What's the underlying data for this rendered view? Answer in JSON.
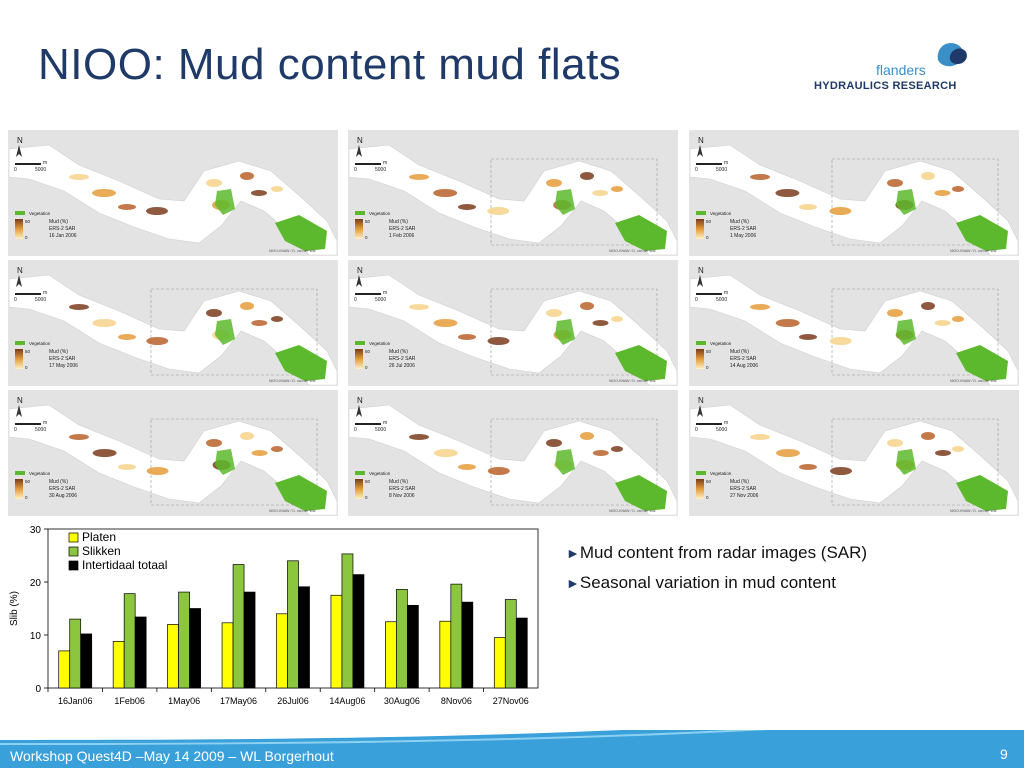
{
  "slide": {
    "title": "NIOO: Mud content mud flats",
    "logo_line1": "flanders",
    "logo_line2": "HYDRAULICS RESEARCH",
    "footer": "Workshop Quest4D –May 14 2009 – WL Borgerhout",
    "page_number": "9",
    "accent_color": "#1f3a68",
    "footer_color": "#3aa0da"
  },
  "maps": {
    "north": "N",
    "scale_unit": "m",
    "scale_zero": "0",
    "scale_max": "5000",
    "vegetation": "Vegetation",
    "legend_max": "50",
    "legend_min": "0",
    "mud_label": "Mud (%)",
    "sensor": "ERS-2 SAR",
    "credit": "NIOO-KNAW / D. van der Wal",
    "dates": [
      "16 Jan 2006",
      "1 Feb 2006",
      "1 May 2006",
      "17 May 2006",
      "26 Jul 2006",
      "14 Aug 2006",
      "30 Aug 2006",
      "8 Nov 2006",
      "27 Nov 2006"
    ]
  },
  "bullets": {
    "b1": "Mud content from radar images (SAR)",
    "b2": "Seasonal variation in mud content",
    "marker": "►"
  },
  "chart_data": {
    "type": "bar",
    "ylabel": "Slib (%)",
    "ylim": [
      0,
      30
    ],
    "yticks": [
      0,
      10,
      20,
      30
    ],
    "categories": [
      "16Jan06",
      "1Feb06",
      "1May06",
      "17May06",
      "26Jul06",
      "14Aug06",
      "30Aug06",
      "8Nov06",
      "27Nov06"
    ],
    "series": [
      {
        "name": "Platen",
        "color": "#ffff00",
        "values": [
          7,
          8.8,
          12,
          12.3,
          14,
          17.5,
          12.5,
          12.6,
          9.5
        ]
      },
      {
        "name": "Slikken",
        "color": "#8cc63f",
        "values": [
          13,
          17.8,
          18.1,
          23.3,
          24,
          25.3,
          18.6,
          19.6,
          16.7
        ]
      },
      {
        "name": "Intertidaal totaal",
        "color": "#000000",
        "values": [
          10.2,
          13.4,
          15,
          18.1,
          19.1,
          21.4,
          15.6,
          16.2,
          13.2
        ]
      }
    ],
    "legend_position": "top-left",
    "grid": false
  }
}
